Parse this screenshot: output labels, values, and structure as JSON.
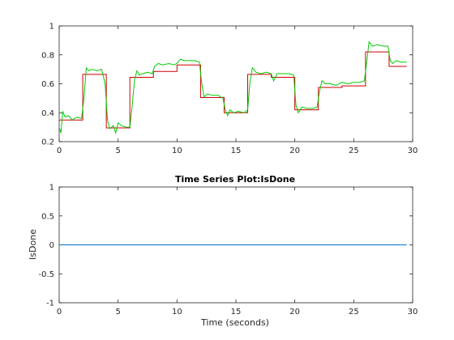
{
  "chart_data": [
    {
      "type": "line",
      "title": "",
      "xlabel": "",
      "ylabel": "",
      "xlim": [
        0,
        30
      ],
      "ylim": [
        0.2,
        1
      ],
      "xticks": [
        "0",
        "5",
        "10",
        "15",
        "20",
        "25",
        "30"
      ],
      "yticks": [
        "0.2",
        "0.4",
        "0.6",
        "0.8",
        "1"
      ],
      "grid": false,
      "series": [
        {
          "color": "#cc0000",
          "step": true,
          "x": [
            0,
            2,
            4,
            6,
            8,
            10,
            12,
            14,
            16,
            18,
            20,
            22,
            24,
            26,
            28,
            29.5
          ],
          "y": [
            0.35,
            0.665,
            0.295,
            0.645,
            0.685,
            0.73,
            0.505,
            0.4,
            0.665,
            0.645,
            0.42,
            0.575,
            0.585,
            0.82,
            0.72,
            0.72
          ]
        },
        {
          "color": "#00cc00",
          "x": [
            0,
            0.15,
            0.3,
            0.5,
            0.8,
            1.1,
            1.5,
            1.9,
            2.1,
            2.3,
            2.5,
            2.8,
            3.2,
            3.6,
            3.9,
            4.1,
            4.3,
            4.6,
            4.8,
            5.0,
            5.3,
            5.7,
            6.0,
            6.2,
            6.4,
            6.6,
            6.8,
            7.1,
            7.5,
            7.9,
            8.1,
            8.4,
            8.8,
            9.3,
            9.8,
            10.1,
            10.3,
            10.6,
            11.0,
            11.5,
            11.9,
            12.1,
            12.3,
            12.6,
            13.0,
            13.5,
            13.9,
            14.1,
            14.3,
            14.5,
            14.8,
            15.2,
            15.7,
            16.0,
            16.2,
            16.4,
            16.7,
            17.1,
            17.6,
            18.0,
            18.2,
            18.5,
            19.0,
            19.5,
            19.9,
            20.1,
            20.3,
            20.6,
            21.0,
            21.5,
            21.9,
            22.1,
            22.3,
            22.6,
            23.0,
            23.5,
            24.0,
            24.5,
            25.0,
            25.5,
            25.9,
            26.1,
            26.3,
            26.6,
            27.0,
            27.5,
            27.9,
            28.1,
            28.3,
            28.6,
            29.0,
            29.5
          ],
          "y": [
            0.3,
            0.26,
            0.41,
            0.37,
            0.38,
            0.35,
            0.37,
            0.36,
            0.5,
            0.71,
            0.69,
            0.7,
            0.69,
            0.7,
            0.6,
            0.35,
            0.29,
            0.31,
            0.26,
            0.33,
            0.31,
            0.3,
            0.3,
            0.45,
            0.63,
            0.69,
            0.66,
            0.67,
            0.68,
            0.67,
            0.72,
            0.74,
            0.73,
            0.74,
            0.73,
            0.75,
            0.77,
            0.76,
            0.76,
            0.76,
            0.75,
            0.6,
            0.51,
            0.53,
            0.52,
            0.52,
            0.5,
            0.42,
            0.38,
            0.42,
            0.4,
            0.41,
            0.4,
            0.42,
            0.62,
            0.71,
            0.68,
            0.67,
            0.68,
            0.67,
            0.62,
            0.67,
            0.67,
            0.67,
            0.66,
            0.45,
            0.4,
            0.44,
            0.43,
            0.43,
            0.44,
            0.55,
            0.62,
            0.6,
            0.6,
            0.59,
            0.61,
            0.6,
            0.61,
            0.61,
            0.62,
            0.75,
            0.89,
            0.86,
            0.87,
            0.86,
            0.86,
            0.76,
            0.74,
            0.76,
            0.75,
            0.75
          ]
        }
      ]
    },
    {
      "type": "line",
      "title": "Time Series Plot:IsDone",
      "xlabel": "Time (seconds)",
      "ylabel": "IsDone",
      "xlim": [
        0,
        30
      ],
      "ylim": [
        -1,
        1
      ],
      "xticks": [
        "0",
        "5",
        "10",
        "15",
        "20",
        "25",
        "30"
      ],
      "yticks": [
        "-1",
        "-0.5",
        "0",
        "0.5",
        "1"
      ],
      "grid": false,
      "series": [
        {
          "color": "#0072bd",
          "x": [
            0,
            29.5
          ],
          "y": [
            0,
            0
          ]
        }
      ]
    }
  ]
}
